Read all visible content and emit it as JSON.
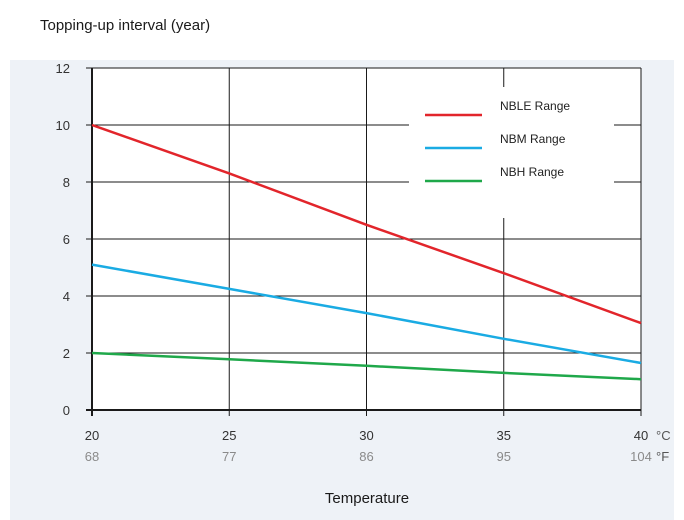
{
  "chart_data": {
    "type": "line",
    "title": "",
    "ylabel": "Topping-up interval (year)",
    "xlabel": "Temperature",
    "x": [
      20,
      25,
      30,
      35,
      40
    ],
    "x_secondary": [
      68,
      77,
      86,
      95,
      104
    ],
    "x_unit": "°C",
    "x_secondary_unit": "°F",
    "ylim": [
      0,
      12
    ],
    "yticks": [
      0,
      2,
      4,
      6,
      8,
      10,
      12
    ],
    "xlim": [
      20,
      40
    ],
    "grid": true,
    "legend_position": "top-right",
    "series": [
      {
        "name": "NBLE Range",
        "color": "#e2252b",
        "values": [
          10.0,
          8.3,
          6.5,
          4.8,
          3.05
        ]
      },
      {
        "name": "NBM Range",
        "color": "#1aabe3",
        "values": [
          5.1,
          4.25,
          3.4,
          2.5,
          1.65
        ]
      },
      {
        "name": "NBH Range",
        "color": "#1fa84a",
        "values": [
          2.0,
          1.78,
          1.55,
          1.3,
          1.08
        ]
      }
    ]
  },
  "colors": {
    "panel_background": "#eef2f7",
    "plot_background": "#ffffff"
  }
}
